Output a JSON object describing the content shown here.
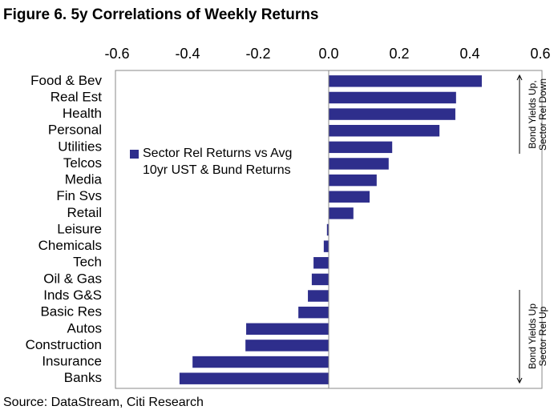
{
  "chart_data": {
    "type": "bar",
    "orientation": "horizontal",
    "title": "Figure 6. 5y Correlations of Weekly Returns",
    "source": "Source: DataStream, Citi Research",
    "categories": [
      "Food & Bev",
      "Real Est",
      "Health",
      "Personal",
      "Utilities",
      "Telcos",
      "Media",
      "Fin Svs",
      "Retail",
      "Leisure",
      "Chemicals",
      "Tech",
      "Oil & Gas",
      "Inds G&S",
      "Basic Res",
      "Autos",
      "Construction",
      "Insurance",
      "Banks"
    ],
    "series": [
      {
        "name": "Sector Rel Returns vs Avg 10yr UST & Bund Returns",
        "color": "#2e2e8c",
        "values": [
          0.434,
          0.361,
          0.359,
          0.314,
          0.18,
          0.17,
          0.136,
          0.116,
          0.07,
          -0.005,
          -0.014,
          -0.043,
          -0.048,
          -0.059,
          -0.086,
          -0.234,
          -0.236,
          -0.386,
          -0.423
        ]
      }
    ],
    "xlim": [
      -0.6,
      0.6
    ],
    "xticks": [
      {
        "value": -0.6,
        "label": "-0.6"
      },
      {
        "value": -0.4,
        "label": "-0.4"
      },
      {
        "value": -0.2,
        "label": "-0.2"
      },
      {
        "value": 0,
        "label": "0.0"
      },
      0.2,
      0.4,
      0.6
    ],
    "annotations": [
      {
        "lines": [
          "Bond Yields Up,",
          "Sector Rel Down"
        ]
      },
      {
        "lines": [
          "Bond Yields Up",
          "Sector Rel Up"
        ]
      }
    ],
    "grid": false
  }
}
